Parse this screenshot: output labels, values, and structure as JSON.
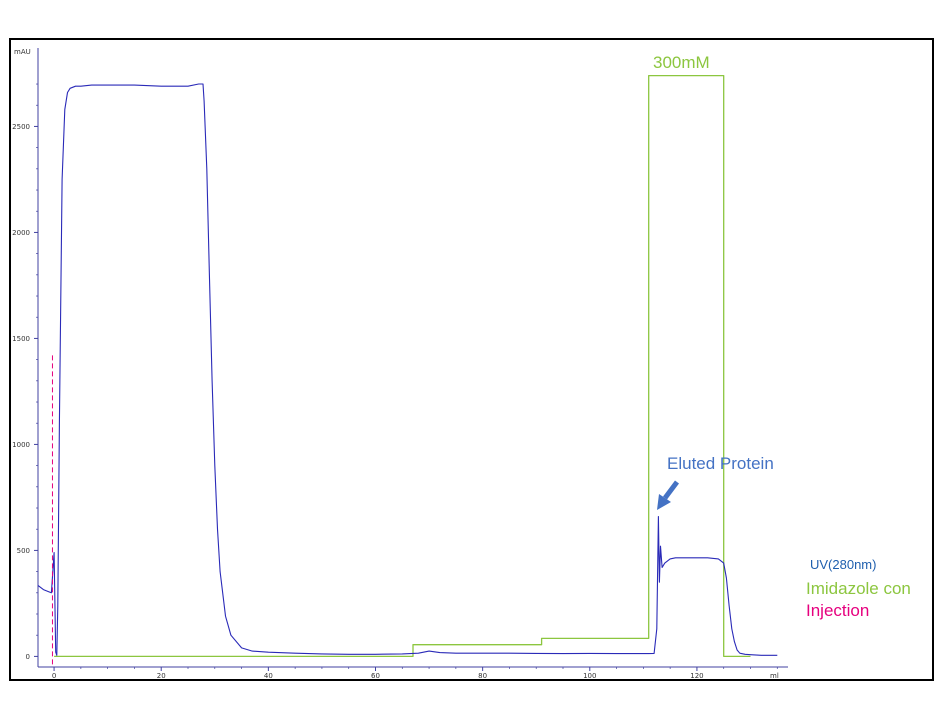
{
  "chart_data": {
    "type": "line",
    "title": "",
    "xlabel": "",
    "ylabel": "",
    "x_unit": "ml",
    "y_unit": "mAU",
    "xlim": [
      -3,
      137
    ],
    "ylim": [
      -50,
      2870
    ],
    "x_ticks": [
      0,
      20,
      40,
      60,
      80,
      100,
      120
    ],
    "y_ticks": [
      0,
      500,
      1000,
      1500,
      2000,
      2500
    ],
    "grid": false,
    "legend_position": "right",
    "legend": [
      {
        "label": "UV(280nm)",
        "color": "#1f5fae"
      },
      {
        "label": "Imidazole con",
        "color": "#8cc63f"
      },
      {
        "label": "Injection",
        "color": "#e6007e"
      }
    ],
    "annotations": [
      {
        "text": "300mM",
        "color": "#8cc63f"
      },
      {
        "text": "Eluted Protein",
        "color": "#4472c4"
      }
    ],
    "injection_ml": -0.3,
    "injection_height_mAU": 1420,
    "series": [
      {
        "name": "UV(280nm)",
        "color": "#2a2ab8",
        "x": [
          -3,
          -2,
          -1,
          -0.5,
          0,
          0.3,
          0.5,
          0.7,
          1,
          1.5,
          2,
          2.5,
          3,
          4,
          5,
          7,
          10,
          15,
          20,
          25,
          27,
          27.8,
          28,
          28.5,
          29,
          29.5,
          30,
          30.5,
          31,
          32,
          33,
          35,
          37,
          40,
          45,
          50,
          55,
          60,
          65,
          68,
          70,
          72,
          75,
          80,
          85,
          90,
          95,
          100,
          105,
          110,
          111,
          112,
          112.5,
          112.8,
          113,
          113.2,
          113.5,
          114,
          115,
          116,
          118,
          120,
          122,
          124,
          125,
          125.5,
          126,
          126.5,
          127,
          127.5,
          128,
          129,
          130,
          132,
          135
        ],
        "values": [
          335,
          315,
          305,
          300,
          490,
          20,
          5,
          240,
          1100,
          2250,
          2580,
          2660,
          2680,
          2690,
          2690,
          2695,
          2695,
          2695,
          2690,
          2690,
          2700,
          2700,
          2620,
          2300,
          1800,
          1300,
          900,
          600,
          400,
          190,
          100,
          40,
          25,
          20,
          15,
          12,
          10,
          10,
          12,
          15,
          25,
          18,
          15,
          15,
          15,
          14,
          13,
          14,
          13,
          13,
          13,
          14,
          130,
          660,
          350,
          520,
          420,
          440,
          460,
          465,
          465,
          465,
          465,
          460,
          440,
          370,
          240,
          130,
          70,
          30,
          15,
          10,
          8,
          5,
          5
        ]
      },
      {
        "name": "Imidazole con",
        "color": "#8cc63f",
        "x": [
          0,
          67,
          67,
          91,
          91,
          111,
          111,
          125,
          125,
          130
        ],
        "values": [
          0,
          0,
          55,
          55,
          85,
          85,
          2740,
          2740,
          0,
          0
        ]
      }
    ]
  }
}
